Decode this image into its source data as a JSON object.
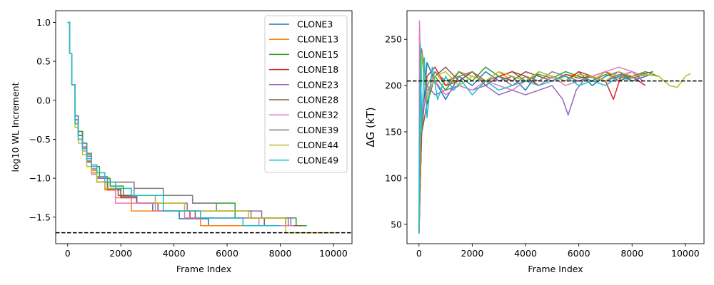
{
  "chart_data": [
    {
      "type": "line",
      "xlabel": "Frame Index",
      "ylabel": "log10 WL Increment",
      "xlim": [
        -450,
        10700
      ],
      "ylim": [
        -1.84,
        1.15
      ],
      "xticks": [
        0,
        2000,
        4000,
        6000,
        8000,
        10000
      ],
      "yticks": [
        1.0,
        0.5,
        0.0,
        -0.5,
        -1.0,
        -1.5
      ],
      "xtick_labels": [
        "0",
        "2000",
        "4000",
        "6000",
        "8000",
        "10000"
      ],
      "ytick_labels": [
        "1.0",
        "0.5",
        "0.0",
        "−0.5",
        "−1.0",
        "−1.5"
      ],
      "reference_line": {
        "y": -1.699,
        "style": "dashed",
        "color": "#000000"
      },
      "legend_placement": "top-right",
      "series": [
        {
          "name": "CLONE3",
          "color": "#1f77b4",
          "x": [
            0,
            80,
            160,
            280,
            400,
            560,
            720,
            900,
            1100,
            1500,
            2000,
            2600,
            3200,
            4200,
            5300,
            6500,
            7600,
            8700
          ],
          "y": [
            1.0,
            0.6,
            0.2,
            -0.2,
            -0.4,
            -0.55,
            -0.7,
            -0.85,
            -1.0,
            -1.13,
            -1.23,
            -1.32,
            -1.42,
            -1.52,
            -1.61,
            -1.61,
            -1.61,
            -1.61
          ]
        },
        {
          "name": "CLONE13",
          "color": "#ff7f0e",
          "x": [
            0,
            80,
            160,
            280,
            400,
            560,
            720,
            900,
            1100,
            1400,
            1800,
            2400,
            3000,
            3800,
            5000,
            6900,
            8500
          ],
          "y": [
            1.0,
            0.6,
            0.2,
            -0.25,
            -0.45,
            -0.6,
            -0.75,
            -0.9,
            -1.05,
            -1.15,
            -1.25,
            -1.42,
            -1.42,
            -1.42,
            -1.61,
            -1.61,
            -1.61
          ]
        },
        {
          "name": "CLONE15",
          "color": "#2ca02c",
          "x": [
            0,
            80,
            160,
            280,
            400,
            560,
            720,
            900,
            1200,
            1600,
            2100,
            2800,
            3500,
            4700,
            6300,
            8600,
            9000
          ],
          "y": [
            1.0,
            0.6,
            0.2,
            -0.25,
            -0.4,
            -0.55,
            -0.7,
            -0.85,
            -1.0,
            -1.1,
            -1.22,
            -1.22,
            -1.22,
            -1.32,
            -1.51,
            -1.61,
            -1.61
          ]
        },
        {
          "name": "CLONE18",
          "color": "#d62728",
          "x": [
            0,
            80,
            160,
            280,
            400,
            560,
            720,
            900,
            1100,
            1500,
            2000,
            2600,
            3400,
            4600,
            5500,
            7000,
            8200
          ],
          "y": [
            1.0,
            0.6,
            0.2,
            -0.3,
            -0.45,
            -0.6,
            -0.78,
            -0.93,
            -1.05,
            -1.15,
            -1.25,
            -1.32,
            -1.42,
            -1.51,
            -1.51,
            -1.51,
            -1.61
          ]
        },
        {
          "name": "CLONE23",
          "color": "#9467bd",
          "x": [
            0,
            80,
            160,
            280,
            400,
            560,
            720,
            900,
            1100,
            1500,
            2000,
            2500,
            3300,
            4500,
            5900,
            7300,
            8400
          ],
          "y": [
            1.0,
            0.6,
            0.2,
            -0.25,
            -0.45,
            -0.6,
            -0.72,
            -0.88,
            -1.0,
            -1.05,
            -1.05,
            -1.22,
            -1.32,
            -1.42,
            -1.42,
            -1.51,
            -1.61
          ]
        },
        {
          "name": "CLONE28",
          "color": "#8c564b",
          "x": [
            0,
            80,
            160,
            280,
            400,
            560,
            720,
            900,
            1100,
            1500,
            1900,
            2600,
            3400,
            4800,
            6100,
            7400,
            8800
          ],
          "y": [
            1.0,
            0.6,
            0.2,
            -0.3,
            -0.45,
            -0.62,
            -0.78,
            -0.93,
            -1.05,
            -1.13,
            -1.22,
            -1.32,
            -1.42,
            -1.51,
            -1.51,
            -1.61,
            -1.61
          ]
        },
        {
          "name": "CLONE32",
          "color": "#e377c2",
          "x": [
            0,
            80,
            160,
            280,
            400,
            560,
            720,
            900,
            1100,
            1400,
            1800,
            2400,
            3300,
            4400,
            5600,
            7200,
            8500
          ],
          "y": [
            1.0,
            0.6,
            0.2,
            -0.3,
            -0.5,
            -0.65,
            -0.8,
            -0.95,
            -1.05,
            -1.13,
            -1.32,
            -1.32,
            -1.42,
            -1.51,
            -1.51,
            -1.61,
            -1.61
          ]
        },
        {
          "name": "CLONE39",
          "color": "#7f7f7f",
          "x": [
            0,
            80,
            160,
            280,
            400,
            560,
            720,
            900,
            1100,
            1500,
            2000,
            2500,
            3600,
            4700,
            5600,
            6900,
            8300
          ],
          "y": [
            1.0,
            0.6,
            0.2,
            -0.25,
            -0.45,
            -0.55,
            -0.68,
            -0.83,
            -0.98,
            -1.05,
            -1.05,
            -1.13,
            -1.22,
            -1.32,
            -1.42,
            -1.51,
            -1.61
          ]
        },
        {
          "name": "CLONE44",
          "color": "#bcbd22",
          "x": [
            0,
            80,
            160,
            280,
            400,
            560,
            720,
            900,
            1100,
            1400,
            1800,
            2400,
            3300,
            4400,
            6800,
            8200,
            10200
          ],
          "y": [
            1.0,
            0.6,
            0.2,
            -0.35,
            -0.55,
            -0.7,
            -0.85,
            -0.93,
            -1.05,
            -1.13,
            -1.13,
            -1.22,
            -1.32,
            -1.42,
            -1.51,
            -1.7,
            -1.7
          ]
        },
        {
          "name": "CLONE49",
          "color": "#17becf",
          "x": [
            0,
            80,
            160,
            280,
            400,
            560,
            720,
            900,
            1100,
            1400,
            1800,
            2400,
            3600,
            5000,
            6600,
            8000
          ],
          "y": [
            1.0,
            0.6,
            0.2,
            -0.3,
            -0.5,
            -0.62,
            -0.75,
            -0.85,
            -0.93,
            -1.05,
            -1.13,
            -1.22,
            -1.42,
            -1.51,
            -1.61,
            -1.61
          ]
        }
      ]
    },
    {
      "type": "line",
      "xlabel": "Frame Index",
      "ylabel": "ΔG (kT)",
      "xlim": [
        -450,
        10700
      ],
      "ylim": [
        29,
        281
      ],
      "xticks": [
        0,
        2000,
        4000,
        6000,
        8000,
        10000
      ],
      "yticks": [
        50,
        100,
        150,
        200,
        250
      ],
      "xtick_labels": [
        "0",
        "2000",
        "4000",
        "6000",
        "8000",
        "10000"
      ],
      "ytick_labels": [
        "50",
        "100",
        "150",
        "200",
        "250"
      ],
      "reference_line": {
        "y": 205,
        "style": "dashed",
        "color": "#000000"
      },
      "series": [
        {
          "name": "CLONE3",
          "color": "#1f77b4",
          "x": [
            0,
            100,
            300,
            600,
            1000,
            1500,
            2000,
            2500,
            3000,
            3500,
            4000,
            4500,
            5000,
            5500,
            6000,
            6500,
            7000,
            7500,
            8000,
            8700
          ],
          "y": [
            45,
            150,
            225,
            205,
            185,
            210,
            200,
            215,
            205,
            210,
            195,
            215,
            210,
            205,
            215,
            200,
            210,
            215,
            205,
            212
          ]
        },
        {
          "name": "CLONE13",
          "color": "#ff7f0e",
          "x": [
            0,
            100,
            300,
            600,
            1000,
            1500,
            2000,
            2500,
            3000,
            3500,
            4000,
            4500,
            5000,
            5500,
            6000,
            6500,
            7000,
            7500,
            8000,
            8500
          ],
          "y": [
            40,
            170,
            190,
            215,
            200,
            215,
            210,
            205,
            215,
            205,
            215,
            210,
            205,
            212,
            210,
            205,
            215,
            210,
            208,
            212
          ]
        },
        {
          "name": "CLONE15",
          "color": "#2ca02c",
          "x": [
            0,
            100,
            300,
            600,
            1000,
            1500,
            2000,
            2500,
            3000,
            3500,
            4000,
            4500,
            5000,
            5500,
            6000,
            6500,
            7000,
            7500,
            8000,
            8500,
            9000
          ],
          "y": [
            40,
            235,
            180,
            210,
            195,
            215,
            205,
            220,
            210,
            215,
            205,
            212,
            208,
            215,
            210,
            205,
            212,
            208,
            210,
            215,
            210
          ]
        },
        {
          "name": "CLONE18",
          "color": "#d62728",
          "x": [
            0,
            100,
            300,
            600,
            1000,
            1500,
            2000,
            2500,
            3000,
            3500,
            4000,
            4500,
            5000,
            5500,
            6000,
            6500,
            7000,
            7300,
            7600,
            8000,
            8500
          ],
          "y": [
            40,
            150,
            210,
            220,
            200,
            205,
            215,
            205,
            210,
            215,
            210,
            200,
            210,
            205,
            215,
            210,
            205,
            185,
            212,
            210,
            200
          ]
        },
        {
          "name": "CLONE23",
          "color": "#9467bd",
          "x": [
            0,
            100,
            300,
            600,
            1000,
            1500,
            2000,
            2500,
            3000,
            3500,
            4000,
            4500,
            5000,
            5400,
            5600,
            5900,
            6300,
            7000,
            7500,
            8000,
            8400
          ],
          "y": [
            40,
            160,
            200,
            190,
            195,
            200,
            195,
            200,
            190,
            195,
            190,
            195,
            200,
            185,
            168,
            195,
            210,
            205,
            210,
            215,
            205
          ]
        },
        {
          "name": "CLONE28",
          "color": "#8c564b",
          "x": [
            0,
            100,
            300,
            600,
            1000,
            1500,
            2000,
            2500,
            3000,
            3500,
            4000,
            4500,
            5000,
            5500,
            6000,
            6500,
            7000,
            7500,
            8000,
            8800
          ],
          "y": [
            40,
            148,
            180,
            210,
            220,
            205,
            215,
            200,
            210,
            205,
            215,
            210,
            205,
            212,
            208,
            210,
            215,
            205,
            210,
            215
          ]
        },
        {
          "name": "CLONE32",
          "color": "#e377c2",
          "x": [
            0,
            20,
            100,
            300,
            600,
            1000,
            1500,
            2000,
            2500,
            3000,
            3500,
            4000,
            4500,
            5000,
            5500,
            6000,
            6500,
            7000,
            7500,
            8000,
            8500
          ],
          "y": [
            40,
            270,
            170,
            195,
            205,
            190,
            200,
            195,
            205,
            200,
            195,
            205,
            200,
            210,
            200,
            205,
            210,
            215,
            220,
            215,
            210
          ]
        },
        {
          "name": "CLONE39",
          "color": "#7f7f7f",
          "x": [
            0,
            100,
            300,
            600,
            1000,
            1500,
            2000,
            2500,
            3000,
            3500,
            4000,
            4500,
            5000,
            5500,
            6000,
            6500,
            7000,
            7500,
            8000,
            8300
          ],
          "y": [
            40,
            240,
            200,
            215,
            205,
            210,
            215,
            205,
            210,
            200,
            210,
            205,
            215,
            210,
            205,
            210,
            205,
            212,
            208,
            210
          ]
        },
        {
          "name": "CLONE44",
          "color": "#bcbd22",
          "x": [
            0,
            100,
            300,
            600,
            1000,
            1500,
            2000,
            2500,
            3000,
            3500,
            4000,
            4500,
            5000,
            5500,
            6000,
            6500,
            7000,
            7500,
            8000,
            8500,
            9000,
            9400,
            9700,
            10000,
            10200
          ],
          "y": [
            40,
            235,
            185,
            210,
            215,
            200,
            210,
            205,
            215,
            210,
            205,
            215,
            210,
            205,
            212,
            210,
            205,
            215,
            210,
            212,
            210,
            200,
            198,
            210,
            213
          ]
        },
        {
          "name": "CLONE49",
          "color": "#17becf",
          "x": [
            0,
            50,
            100,
            200,
            300,
            500,
            700,
            1000,
            1300,
            1600,
            2000,
            2500,
            3000,
            3500,
            4000,
            4500,
            5000,
            5500,
            6000,
            6500,
            7000,
            7500,
            8000
          ],
          "y": [
            40,
            245,
            150,
            230,
            165,
            220,
            185,
            210,
            195,
            205,
            190,
            205,
            195,
            200,
            205,
            200,
            205,
            210,
            200,
            205,
            200,
            210,
            205
          ]
        }
      ]
    }
  ]
}
